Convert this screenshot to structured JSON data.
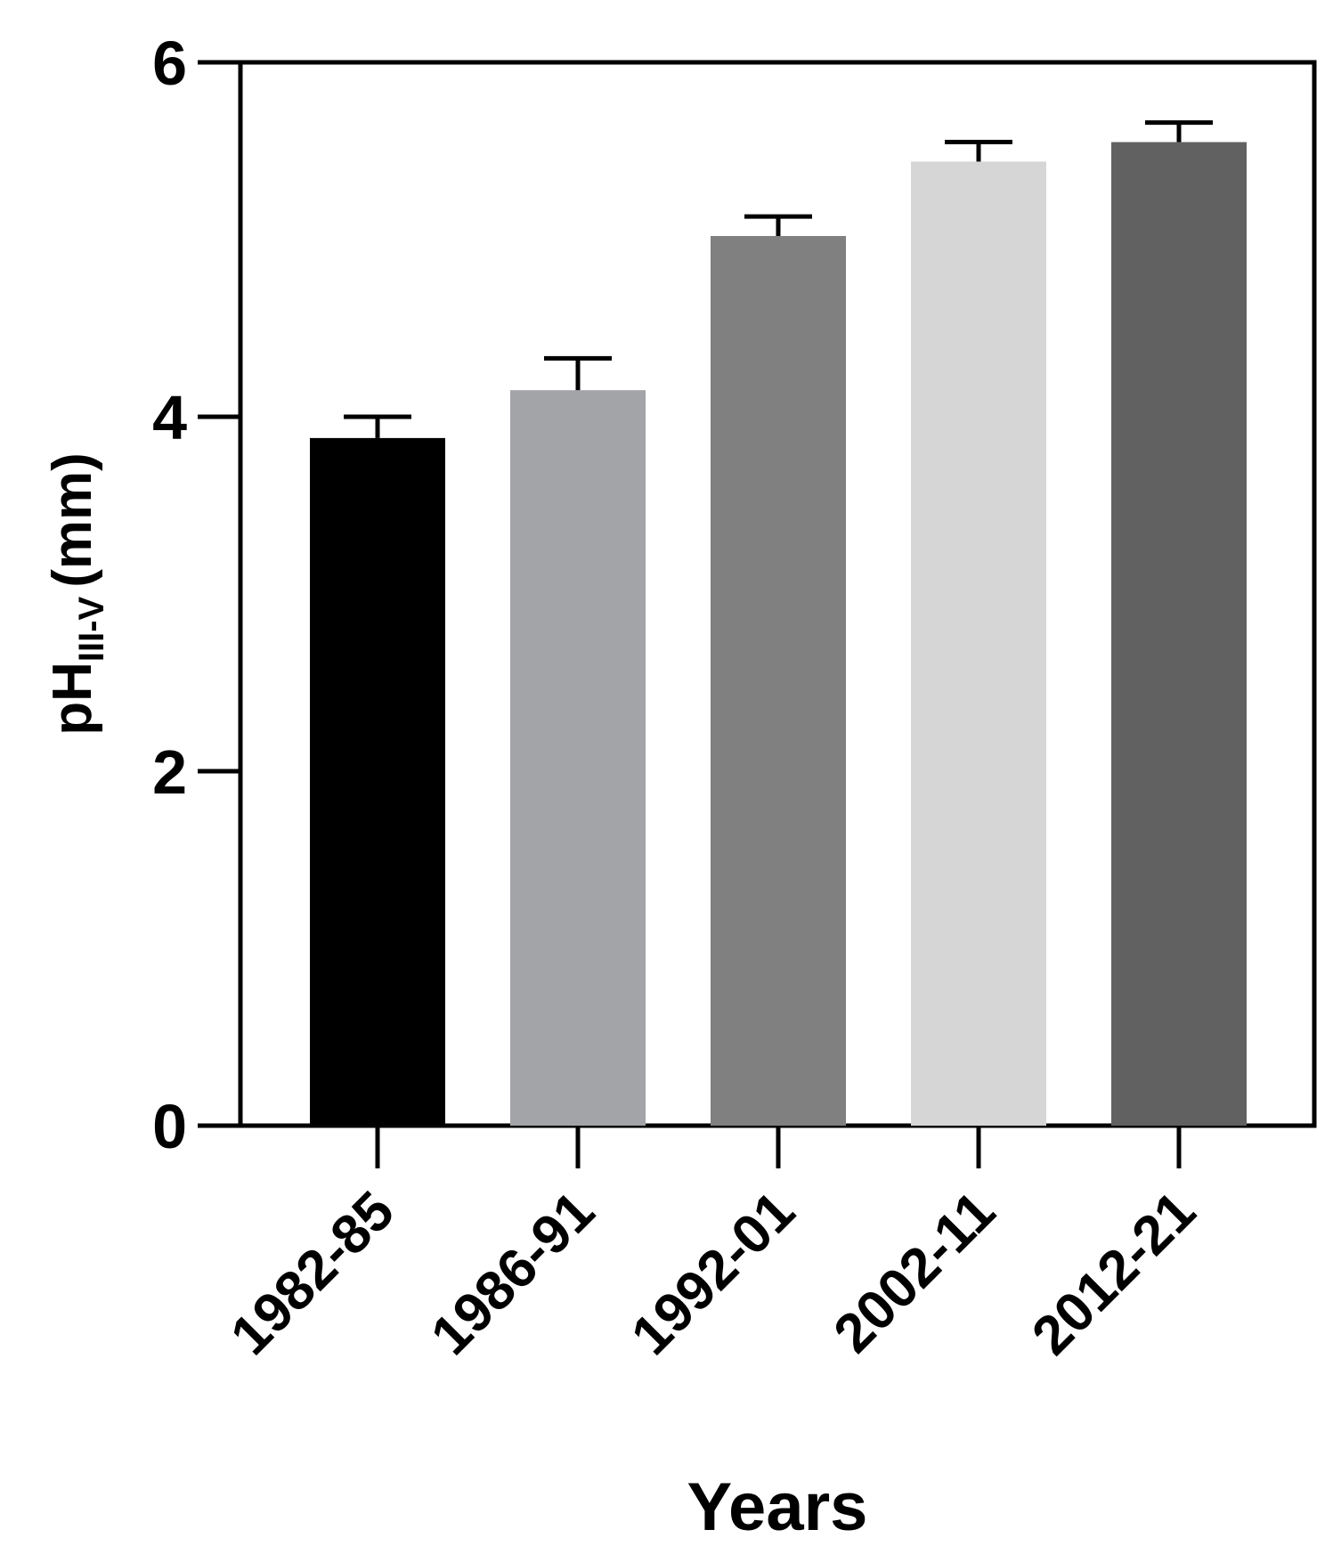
{
  "chart_data": {
    "type": "bar",
    "categories": [
      "1982-85",
      "1986-91",
      "1992-01",
      "2002-11",
      "2012-21"
    ],
    "values": [
      3.88,
      4.15,
      5.02,
      5.44,
      5.55
    ],
    "error_upper": [
      4.0,
      4.33,
      5.13,
      5.55,
      5.66
    ],
    "colors": [
      "#000000",
      "#a3a4a8",
      "#808080",
      "#d6d6d6",
      "#616161"
    ],
    "xlabel": "Years",
    "ylabel": {
      "main": "pH",
      "subscript": "III-V",
      "unit": "(mm)"
    },
    "ylim": [
      0,
      6
    ],
    "yticks": [
      "0",
      "2",
      "4",
      "6"
    ],
    "grid": false,
    "legend": "none"
  }
}
